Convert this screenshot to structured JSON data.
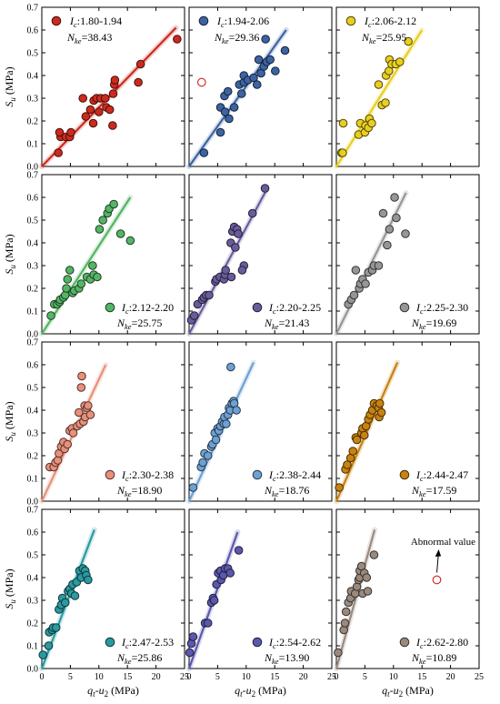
{
  "chart_data": {
    "type": "scatter",
    "layout": "4x3 panel grid",
    "shared_axes": {
      "xlabel": "q_t-u_2 (MPa)",
      "ylabel": "S_u (MPa)",
      "xlim": [
        0,
        25
      ],
      "ylim": [
        0,
        0.7
      ],
      "xticks": [
        0,
        5,
        10,
        15,
        20,
        25
      ],
      "yticks": [
        0.0,
        0.1,
        0.2,
        0.3,
        0.4,
        0.5,
        0.6,
        0.7
      ]
    },
    "panels": [
      {
        "ic_label": ":1.80-1.94",
        "nke_label": "=38.43",
        "nke": 38.43,
        "color": "#cc2a1e",
        "legend_pos": "top-left",
        "fit_end": [
          23.5,
          0.61
        ],
        "points": [
          [
            2.9,
            0.06
          ],
          [
            3.3,
            0.13
          ],
          [
            3.1,
            0.15
          ],
          [
            4.2,
            0.13
          ],
          [
            4.9,
            0.13
          ],
          [
            5.1,
            0.15
          ],
          [
            7.2,
            0.3
          ],
          [
            7.7,
            0.22
          ],
          [
            8.5,
            0.25
          ],
          [
            9.0,
            0.19
          ],
          [
            9.1,
            0.29
          ],
          [
            9.6,
            0.3
          ],
          [
            10.0,
            0.24
          ],
          [
            10.3,
            0.3
          ],
          [
            11.3,
            0.26
          ],
          [
            11.1,
            0.3
          ],
          [
            11.9,
            0.25
          ],
          [
            12.5,
            0.32
          ],
          [
            12.7,
            0.36
          ],
          [
            12.8,
            0.38
          ],
          [
            12.4,
            0.18
          ],
          [
            16.9,
            0.37
          ],
          [
            17.3,
            0.45
          ],
          [
            23.7,
            0.56
          ]
        ],
        "open_points": []
      },
      {
        "ic_label": ":1.94-2.06",
        "nke_label": "=29.36",
        "nke": 29.36,
        "color": "#3d63a2",
        "legend_pos": "top-left",
        "fit_end": [
          17.0,
          0.6
        ],
        "points": [
          [
            2.6,
            0.06
          ],
          [
            5.5,
            0.15
          ],
          [
            5.5,
            0.26
          ],
          [
            6.3,
            0.24
          ],
          [
            6.2,
            0.31
          ],
          [
            7.0,
            0.21
          ],
          [
            6.8,
            0.33
          ],
          [
            7.9,
            0.26
          ],
          [
            8.8,
            0.36
          ],
          [
            9.2,
            0.32
          ],
          [
            9.6,
            0.37
          ],
          [
            9.6,
            0.4
          ],
          [
            10.3,
            0.38
          ],
          [
            11.3,
            0.39
          ],
          [
            11.9,
            0.36
          ],
          [
            12.2,
            0.47
          ],
          [
            12.6,
            0.41
          ],
          [
            13.1,
            0.44
          ],
          [
            13.4,
            0.56
          ],
          [
            13.6,
            0.46
          ],
          [
            14.2,
            0.47
          ],
          [
            15.1,
            0.42
          ],
          [
            16.8,
            0.51
          ]
        ],
        "open_points": [
          [
            2.2,
            0.37
          ]
        ]
      },
      {
        "ic_label": ":2.06-2.12",
        "nke_label": "=25.95",
        "nke": 25.95,
        "color": "#e8cf1e",
        "legend_pos": "top-left",
        "fit_end": [
          15.0,
          0.6
        ],
        "points": [
          [
            0.9,
            0.06
          ],
          [
            1.1,
            0.06
          ],
          [
            1.2,
            0.19
          ],
          [
            3.9,
            0.14
          ],
          [
            4.2,
            0.19
          ],
          [
            5.0,
            0.15
          ],
          [
            5.1,
            0.18
          ],
          [
            5.6,
            0.17
          ],
          [
            5.8,
            0.21
          ],
          [
            6.2,
            0.19
          ],
          [
            7.4,
            0.36
          ],
          [
            8.0,
            0.27
          ],
          [
            8.6,
            0.28
          ],
          [
            8.7,
            0.4
          ],
          [
            9.2,
            0.42
          ],
          [
            9.3,
            0.47
          ],
          [
            9.7,
            0.45
          ],
          [
            10.4,
            0.45
          ],
          [
            11.1,
            0.46
          ],
          [
            12.6,
            0.55
          ]
        ],
        "open_points": []
      },
      {
        "ic_label": ":2.12-2.20",
        "nke_label": "=25.75",
        "nke": 25.75,
        "color": "#55b465",
        "legend_pos": "bottom-right",
        "fit_end": [
          15.5,
          0.6
        ],
        "points": [
          [
            1.6,
            0.08
          ],
          [
            2.2,
            0.13
          ],
          [
            2.7,
            0.13
          ],
          [
            3.1,
            0.14
          ],
          [
            3.2,
            0.15
          ],
          [
            3.8,
            0.16
          ],
          [
            4.1,
            0.17
          ],
          [
            4.3,
            0.2
          ],
          [
            4.5,
            0.24
          ],
          [
            4.9,
            0.28
          ],
          [
            5.4,
            0.18
          ],
          [
            5.7,
            0.19
          ],
          [
            6.5,
            0.2
          ],
          [
            6.9,
            0.22
          ],
          [
            7.9,
            0.25
          ],
          [
            8.5,
            0.24
          ],
          [
            8.9,
            0.3
          ],
          [
            9.1,
            0.26
          ],
          [
            9.7,
            0.25
          ],
          [
            10.1,
            0.46
          ],
          [
            10.7,
            0.5
          ],
          [
            11.5,
            0.53
          ],
          [
            11.8,
            0.55
          ],
          [
            12.6,
            0.57
          ],
          [
            13.8,
            0.44
          ],
          [
            15.5,
            0.41
          ]
        ],
        "open_points": []
      },
      {
        "ic_label": ":2.20-2.25",
        "nke_label": "=21.43",
        "nke": 21.43,
        "color": "#6a5c9c",
        "legend_pos": "bottom-right",
        "fit_end": [
          13.5,
          0.63
        ],
        "points": [
          [
            0.4,
            0.06
          ],
          [
            0.9,
            0.08
          ],
          [
            1.5,
            0.13
          ],
          [
            2.3,
            0.15
          ],
          [
            2.6,
            0.16
          ],
          [
            3.0,
            0.17
          ],
          [
            3.5,
            0.17
          ],
          [
            4.6,
            0.23
          ],
          [
            4.8,
            0.24
          ],
          [
            5.4,
            0.25
          ],
          [
            6.1,
            0.24
          ],
          [
            6.3,
            0.26
          ],
          [
            6.4,
            0.28
          ],
          [
            7.3,
            0.4
          ],
          [
            7.4,
            0.25
          ],
          [
            7.6,
            0.45
          ],
          [
            7.9,
            0.47
          ],
          [
            8.1,
            0.38
          ],
          [
            8.4,
            0.46
          ],
          [
            8.6,
            0.44
          ],
          [
            9.6,
            0.3
          ],
          [
            9.3,
            0.28
          ],
          [
            11.1,
            0.53
          ],
          [
            13.3,
            0.64
          ]
        ],
        "open_points": []
      },
      {
        "ic_label": ":2.25-2.30",
        "nke_label": "=19.69",
        "nke": 19.69,
        "color": "#969696",
        "legend_pos": "bottom-right",
        "fit_end": [
          12.2,
          0.62
        ],
        "points": [
          [
            2.1,
            0.13
          ],
          [
            2.6,
            0.15
          ],
          [
            3.1,
            0.17
          ],
          [
            3.4,
            0.28
          ],
          [
            4.0,
            0.2
          ],
          [
            4.2,
            0.22
          ],
          [
            4.6,
            0.24
          ],
          [
            5.1,
            0.22
          ],
          [
            5.6,
            0.27
          ],
          [
            6.3,
            0.28
          ],
          [
            6.6,
            0.3
          ],
          [
            7.4,
            0.3
          ],
          [
            8.2,
            0.53
          ],
          [
            8.9,
            0.39
          ],
          [
            9.3,
            0.46
          ],
          [
            10.2,
            0.6
          ],
          [
            10.5,
            0.51
          ],
          [
            12.1,
            0.44
          ]
        ],
        "open_points": []
      },
      {
        "ic_label": ":2.30-2.38",
        "nke_label": "=18.90",
        "nke": 18.9,
        "color": "#e8907a",
        "legend_pos": "bottom-right",
        "fit_end": [
          11.2,
          0.6
        ],
        "points": [
          [
            1.4,
            0.15
          ],
          [
            2.1,
            0.15
          ],
          [
            2.4,
            0.17
          ],
          [
            2.8,
            0.18
          ],
          [
            3.0,
            0.21
          ],
          [
            3.4,
            0.24
          ],
          [
            3.8,
            0.26
          ],
          [
            4.0,
            0.23
          ],
          [
            4.5,
            0.25
          ],
          [
            4.9,
            0.31
          ],
          [
            5.3,
            0.32
          ],
          [
            5.5,
            0.3
          ],
          [
            6.2,
            0.33
          ],
          [
            6.5,
            0.39
          ],
          [
            6.7,
            0.34
          ],
          [
            6.9,
            0.5
          ],
          [
            7.0,
            0.55
          ],
          [
            7.3,
            0.35
          ],
          [
            7.5,
            0.42
          ],
          [
            7.6,
            0.37
          ],
          [
            7.9,
            0.41
          ],
          [
            8.1,
            0.42
          ],
          [
            8.5,
            0.38
          ]
        ],
        "open_points": []
      },
      {
        "ic_label": ":2.38-2.44",
        "nke_label": "=18.76",
        "nke": 18.76,
        "color": "#6ea0d4",
        "legend_pos": "bottom-right",
        "fit_end": [
          11.3,
          0.61
        ],
        "points": [
          [
            0.7,
            0.06
          ],
          [
            2.1,
            0.15
          ],
          [
            2.4,
            0.17
          ],
          [
            2.7,
            0.21
          ],
          [
            3.3,
            0.2
          ],
          [
            3.9,
            0.24
          ],
          [
            4.1,
            0.25
          ],
          [
            4.5,
            0.3
          ],
          [
            4.7,
            0.27
          ],
          [
            5.0,
            0.32
          ],
          [
            5.2,
            0.31
          ],
          [
            5.5,
            0.33
          ],
          [
            5.8,
            0.35
          ],
          [
            6.1,
            0.34
          ],
          [
            6.2,
            0.37
          ],
          [
            6.5,
            0.34
          ],
          [
            6.8,
            0.38
          ],
          [
            7.0,
            0.41
          ],
          [
            7.2,
            0.4
          ],
          [
            7.5,
            0.43
          ],
          [
            7.8,
            0.44
          ],
          [
            7.9,
            0.43
          ],
          [
            7.3,
            0.59
          ],
          [
            8.3,
            0.4
          ]
        ],
        "open_points": []
      },
      {
        "ic_label": ":2.44-2.47",
        "nke_label": "=17.59",
        "nke": 17.59,
        "color": "#c8820f",
        "legend_pos": "bottom-right",
        "fit_end": [
          10.7,
          0.61
        ],
        "points": [
          [
            0.5,
            0.06
          ],
          [
            1.6,
            0.14
          ],
          [
            1.9,
            0.16
          ],
          [
            2.5,
            0.19
          ],
          [
            2.9,
            0.22
          ],
          [
            3.4,
            0.28
          ],
          [
            3.6,
            0.27
          ],
          [
            4.4,
            0.3
          ],
          [
            4.6,
            0.32
          ],
          [
            4.9,
            0.29
          ],
          [
            5.2,
            0.33
          ],
          [
            5.6,
            0.36
          ],
          [
            5.9,
            0.38
          ],
          [
            6.3,
            0.4
          ],
          [
            6.6,
            0.43
          ],
          [
            7.1,
            0.42
          ],
          [
            7.4,
            0.41
          ],
          [
            7.5,
            0.37
          ],
          [
            7.6,
            0.43
          ],
          [
            7.9,
            0.39
          ]
        ],
        "open_points": []
      },
      {
        "ic_label": ":2.47-2.53",
        "nke_label": "=25.86",
        "nke": 25.86,
        "color": "#2a9aa0",
        "legend_pos": "bottom-right",
        "fit_end": [
          9.2,
          0.61
        ],
        "points": [
          [
            0.2,
            0.06
          ],
          [
            1.2,
            0.1
          ],
          [
            1.3,
            0.16
          ],
          [
            1.8,
            0.17
          ],
          [
            2.0,
            0.18
          ],
          [
            2.5,
            0.18
          ],
          [
            3.0,
            0.26
          ],
          [
            3.4,
            0.28
          ],
          [
            3.6,
            0.31
          ],
          [
            4.1,
            0.29
          ],
          [
            4.6,
            0.34
          ],
          [
            4.9,
            0.35
          ],
          [
            5.2,
            0.33
          ],
          [
            5.4,
            0.37
          ],
          [
            5.8,
            0.32
          ],
          [
            6.1,
            0.38
          ],
          [
            6.6,
            0.43
          ],
          [
            6.9,
            0.4
          ],
          [
            7.2,
            0.44
          ],
          [
            7.6,
            0.43
          ],
          [
            7.8,
            0.41
          ],
          [
            8.1,
            0.39
          ]
        ],
        "open_points": []
      },
      {
        "ic_label": ":2.54-2.62",
        "nke_label": "=13.90",
        "nke": 13.9,
        "color": "#5c58ad",
        "legend_pos": "bottom-right",
        "fit_end": [
          8.5,
          0.6
        ],
        "points": [
          [
            0.1,
            0.07
          ],
          [
            0.4,
            0.11
          ],
          [
            0.7,
            0.14
          ],
          [
            2.8,
            0.2
          ],
          [
            3.3,
            0.2
          ],
          [
            3.9,
            0.29
          ],
          [
            4.2,
            0.31
          ],
          [
            4.4,
            0.3
          ],
          [
            4.8,
            0.37
          ],
          [
            5.1,
            0.42
          ],
          [
            5.5,
            0.43
          ],
          [
            5.6,
            0.39
          ],
          [
            6.0,
            0.41
          ],
          [
            6.3,
            0.44
          ],
          [
            6.8,
            0.44
          ],
          [
            7.2,
            0.42
          ],
          [
            8.7,
            0.52
          ]
        ],
        "open_points": []
      },
      {
        "ic_label": ":2.62-2.80",
        "nke_label": "=10.89",
        "nke": 10.89,
        "color": "#9a8a7e",
        "legend_pos": "bottom-right",
        "fit_end": [
          6.7,
          0.61
        ],
        "points": [
          [
            0.3,
            0.07
          ],
          [
            1.3,
            0.17
          ],
          [
            1.5,
            0.2
          ],
          [
            1.7,
            0.25
          ],
          [
            2.1,
            0.29
          ],
          [
            2.5,
            0.31
          ],
          [
            2.6,
            0.34
          ],
          [
            3.3,
            0.33
          ],
          [
            3.6,
            0.36
          ],
          [
            3.9,
            0.39
          ],
          [
            4.1,
            0.4
          ],
          [
            4.1,
            0.43
          ],
          [
            4.4,
            0.45
          ],
          [
            4.6,
            0.33
          ],
          [
            4.9,
            0.42
          ],
          [
            5.3,
            0.4
          ],
          [
            5.5,
            0.34
          ],
          [
            6.6,
            0.5
          ]
        ],
        "open_points": [
          [
            17.6,
            0.39
          ]
        ],
        "annotation": {
          "text": "Abnormal value",
          "target": [
            17.6,
            0.39
          ]
        }
      }
    ]
  }
}
